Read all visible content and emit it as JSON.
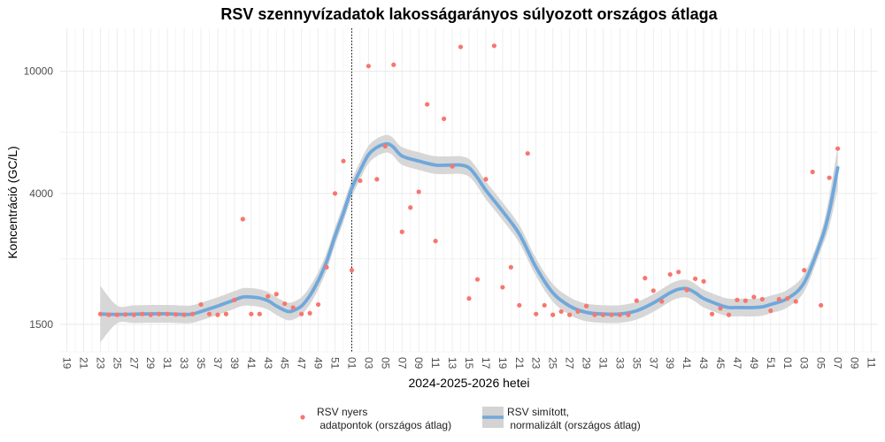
{
  "chart_data": {
    "type": "scatter",
    "title": "RSV szennyvízadatok lakosságarányos súlyozott országos átlaga",
    "xlabel": "2024-2025-2026 hetei",
    "ylabel": "Koncentráció (GC/L)",
    "y_scale": "log",
    "ylim": [
      1220,
      13800
    ],
    "y_ticks": [
      {
        "value": 1500,
        "label": "1500"
      },
      {
        "value": 4000,
        "label": "4000"
      },
      {
        "value": 10000,
        "label": "10000"
      }
    ],
    "x_range": [
      -0.8,
      96.8
    ],
    "x_ticks": [
      {
        "pos": 0,
        "label": "19"
      },
      {
        "pos": 2,
        "label": "21"
      },
      {
        "pos": 4,
        "label": "23"
      },
      {
        "pos": 6,
        "label": "25"
      },
      {
        "pos": 8,
        "label": "27"
      },
      {
        "pos": 10,
        "label": "29"
      },
      {
        "pos": 12,
        "label": "31"
      },
      {
        "pos": 14,
        "label": "33"
      },
      {
        "pos": 16,
        "label": "35"
      },
      {
        "pos": 18,
        "label": "37"
      },
      {
        "pos": 20,
        "label": "39"
      },
      {
        "pos": 22,
        "label": "41"
      },
      {
        "pos": 24,
        "label": "43"
      },
      {
        "pos": 26,
        "label": "45"
      },
      {
        "pos": 28,
        "label": "47"
      },
      {
        "pos": 30,
        "label": "49"
      },
      {
        "pos": 32,
        "label": "51"
      },
      {
        "pos": 34,
        "label": "01"
      },
      {
        "pos": 36,
        "label": "03"
      },
      {
        "pos": 38,
        "label": "05"
      },
      {
        "pos": 40,
        "label": "07"
      },
      {
        "pos": 42,
        "label": "09"
      },
      {
        "pos": 44,
        "label": "11"
      },
      {
        "pos": 46,
        "label": "13"
      },
      {
        "pos": 48,
        "label": "15"
      },
      {
        "pos": 50,
        "label": "17"
      },
      {
        "pos": 52,
        "label": "19"
      },
      {
        "pos": 54,
        "label": "21"
      },
      {
        "pos": 56,
        "label": "23"
      },
      {
        "pos": 58,
        "label": "25"
      },
      {
        "pos": 60,
        "label": "27"
      },
      {
        "pos": 62,
        "label": "29"
      },
      {
        "pos": 64,
        "label": "31"
      },
      {
        "pos": 66,
        "label": "33"
      },
      {
        "pos": 68,
        "label": "35"
      },
      {
        "pos": 70,
        "label": "37"
      },
      {
        "pos": 72,
        "label": "39"
      },
      {
        "pos": 74,
        "label": "41"
      },
      {
        "pos": 76,
        "label": "43"
      },
      {
        "pos": 78,
        "label": "45"
      },
      {
        "pos": 80,
        "label": "47"
      },
      {
        "pos": 82,
        "label": "49"
      },
      {
        "pos": 84,
        "label": "51"
      },
      {
        "pos": 86,
        "label": "01"
      },
      {
        "pos": 88,
        "label": "03"
      },
      {
        "pos": 90,
        "label": "05"
      },
      {
        "pos": 92,
        "label": "07"
      },
      {
        "pos": 94,
        "label": "09"
      },
      {
        "pos": 96,
        "label": "11"
      }
    ],
    "vline_x": 34,
    "grid": true,
    "legend_position": "bottom",
    "colors": {
      "points": "#f8766d",
      "smooth": "#6fa8dc",
      "band": "#d3d3d3",
      "grid": "#ebebeb",
      "vline": "#000000"
    },
    "series": [
      {
        "name": "RSV nyers adatpontok (országos átlag)",
        "legend_lines": [
          "RSV nyers",
          " adatpontok (országos átlag)"
        ],
        "kind": "points",
        "points": [
          [
            4,
            1620
          ],
          [
            5,
            1610
          ],
          [
            6,
            1610
          ],
          [
            7,
            1615
          ],
          [
            8,
            1610
          ],
          [
            9,
            1620
          ],
          [
            10,
            1610
          ],
          [
            11,
            1620
          ],
          [
            12,
            1620
          ],
          [
            13,
            1615
          ],
          [
            14,
            1610
          ],
          [
            15,
            1620
          ],
          [
            16,
            1740
          ],
          [
            17,
            1620
          ],
          [
            18,
            1610
          ],
          [
            19,
            1620
          ],
          [
            20,
            1800
          ],
          [
            21,
            3300
          ],
          [
            22,
            1620
          ],
          [
            23,
            1620
          ],
          [
            24,
            1850
          ],
          [
            25,
            1880
          ],
          [
            26,
            1750
          ],
          [
            27,
            1700
          ],
          [
            28,
            1620
          ],
          [
            29,
            1630
          ],
          [
            30,
            1740
          ],
          [
            31,
            2300
          ],
          [
            32,
            4000
          ],
          [
            33,
            5100
          ],
          [
            34,
            2250
          ],
          [
            35,
            4400
          ],
          [
            36,
            10400
          ],
          [
            37,
            4450
          ],
          [
            38,
            5700
          ],
          [
            39,
            10500
          ],
          [
            40,
            3000
          ],
          [
            41,
            3600
          ],
          [
            42,
            4050
          ],
          [
            43,
            7800
          ],
          [
            44,
            2800
          ],
          [
            45,
            7000
          ],
          [
            46,
            4900
          ],
          [
            47,
            12000
          ],
          [
            48,
            1820
          ],
          [
            49,
            2100
          ],
          [
            50,
            4450
          ],
          [
            51,
            12100
          ],
          [
            52,
            1980
          ],
          [
            53,
            2300
          ],
          [
            54,
            1730
          ],
          [
            55,
            5400
          ],
          [
            56,
            1620
          ],
          [
            57,
            1730
          ],
          [
            58,
            1610
          ],
          [
            59,
            1650
          ],
          [
            60,
            1610
          ],
          [
            61,
            1650
          ],
          [
            62,
            1720
          ],
          [
            63,
            1610
          ],
          [
            64,
            1610
          ],
          [
            65,
            1610
          ],
          [
            66,
            1610
          ],
          [
            67,
            1610
          ],
          [
            68,
            1790
          ],
          [
            69,
            2120
          ],
          [
            70,
            1930
          ],
          [
            71,
            1780
          ],
          [
            72,
            2180
          ],
          [
            73,
            2220
          ],
          [
            74,
            1940
          ],
          [
            75,
            2110
          ],
          [
            76,
            2070
          ],
          [
            77,
            1620
          ],
          [
            78,
            1690
          ],
          [
            79,
            1610
          ],
          [
            80,
            1800
          ],
          [
            81,
            1790
          ],
          [
            82,
            1840
          ],
          [
            83,
            1810
          ],
          [
            84,
            1660
          ],
          [
            85,
            1810
          ],
          [
            86,
            1820
          ],
          [
            87,
            1780
          ],
          [
            88,
            2250
          ],
          [
            89,
            4700
          ],
          [
            90,
            1730
          ],
          [
            91,
            4500
          ],
          [
            92,
            5600
          ]
        ]
      },
      {
        "name": "RSV simított, normalizált (országos átlag)",
        "legend_lines": [
          "RSV simított,",
          " normalizált (országos átlag)"
        ],
        "kind": "smooth",
        "points": [
          [
            4,
            1620
          ],
          [
            6,
            1615
          ],
          [
            8,
            1618
          ],
          [
            10,
            1622
          ],
          [
            12,
            1622
          ],
          [
            14,
            1615
          ],
          [
            15,
            1620
          ],
          [
            16,
            1650
          ],
          [
            18,
            1720
          ],
          [
            20,
            1800
          ],
          [
            21,
            1840
          ],
          [
            22,
            1840
          ],
          [
            23,
            1825
          ],
          [
            24,
            1790
          ],
          [
            25,
            1720
          ],
          [
            26,
            1665
          ],
          [
            26.5,
            1650
          ],
          [
            27,
            1660
          ],
          [
            28,
            1720
          ],
          [
            29,
            1860
          ],
          [
            30,
            2080
          ],
          [
            31,
            2400
          ],
          [
            32,
            2900
          ],
          [
            33,
            3450
          ],
          [
            34,
            4150
          ],
          [
            35,
            4750
          ],
          [
            36,
            5350
          ],
          [
            37,
            5650
          ],
          [
            38,
            5800
          ],
          [
            38.5,
            5780
          ],
          [
            39,
            5650
          ],
          [
            40,
            5300
          ],
          [
            42,
            5100
          ],
          [
            44,
            4950
          ],
          [
            46,
            4950
          ],
          [
            47,
            4950
          ],
          [
            48,
            4850
          ],
          [
            49,
            4500
          ],
          [
            50,
            4100
          ],
          [
            52,
            3500
          ],
          [
            54,
            2950
          ],
          [
            56,
            2300
          ],
          [
            58,
            1900
          ],
          [
            60,
            1720
          ],
          [
            62,
            1640
          ],
          [
            64,
            1620
          ],
          [
            66,
            1620
          ],
          [
            68,
            1660
          ],
          [
            70,
            1760
          ],
          [
            72,
            1900
          ],
          [
            73,
            1950
          ],
          [
            74,
            1960
          ],
          [
            75,
            1900
          ],
          [
            76,
            1820
          ],
          [
            78,
            1730
          ],
          [
            79,
            1700
          ],
          [
            80,
            1700
          ],
          [
            82,
            1700
          ],
          [
            83,
            1710
          ],
          [
            84,
            1740
          ],
          [
            86,
            1820
          ],
          [
            88,
            2050
          ],
          [
            90,
            2800
          ],
          [
            91,
            3500
          ],
          [
            92,
            4850
          ]
        ]
      }
    ]
  }
}
